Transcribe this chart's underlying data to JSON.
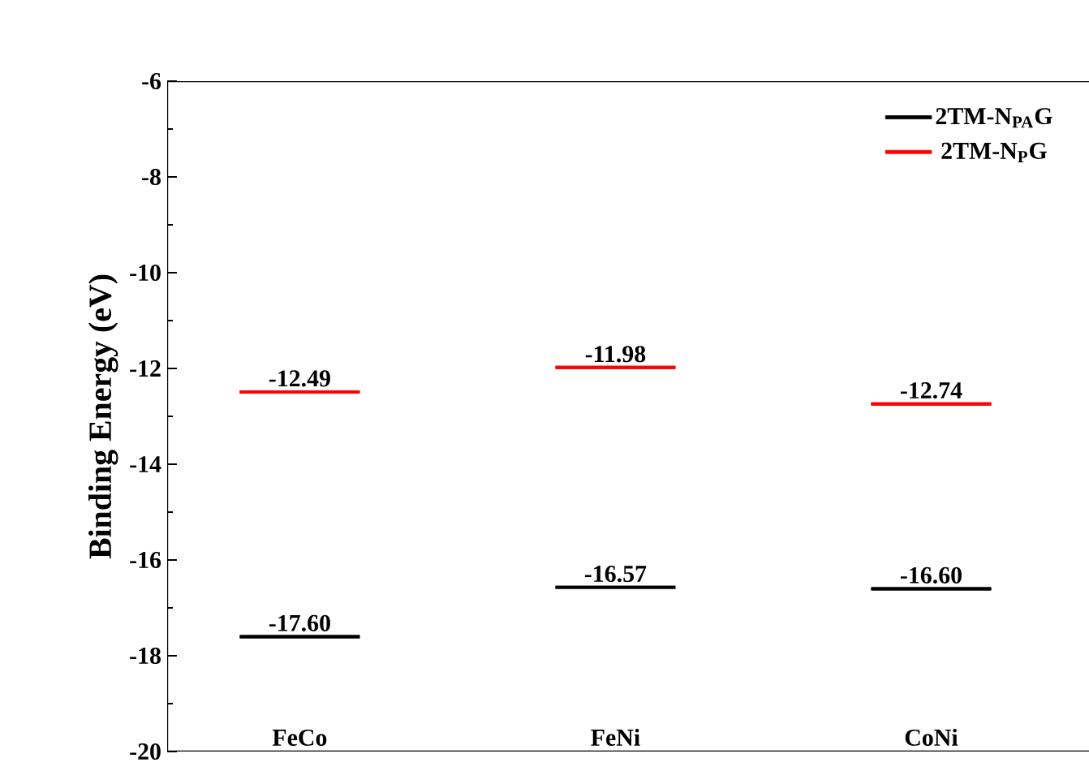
{
  "chart_data": {
    "type": "box",
    "ylabel": "Binding Energy (eV)",
    "categories": [
      "FeCo",
      "FeNi",
      "CoNi"
    ],
    "series": [
      {
        "name": "2TM-N$_{PA}$G",
        "color": "#000000",
        "boxes": [
          {
            "low": -17.6,
            "q1": -17.6,
            "median": -17.6,
            "q3": -17.6,
            "high": -17.6
          },
          {
            "low": -16.57,
            "q1": -16.57,
            "median": -16.57,
            "q3": -16.57,
            "high": -16.57
          },
          {
            "low": -16.6,
            "q1": -16.6,
            "median": -16.6,
            "q3": -16.6,
            "high": -16.6
          }
        ],
        "value_labels": [
          "-17.60",
          "-16.57",
          "-16.60"
        ]
      },
      {
        "name": "2TM-N$_{P}$G",
        "color": "#ff0000",
        "boxes": [
          {
            "low": -12.49,
            "q1": -12.49,
            "median": -12.49,
            "q3": -12.49,
            "high": -12.49
          },
          {
            "low": -11.98,
            "q1": -11.98,
            "median": -11.98,
            "q3": -11.98,
            "high": -11.98
          },
          {
            "low": -12.74,
            "q1": -12.74,
            "median": -12.74,
            "q3": -12.74,
            "high": -12.74
          }
        ],
        "value_labels": [
          "-12.49",
          "-11.98",
          "-12.74"
        ]
      }
    ],
    "ylim": [
      -20,
      -6
    ],
    "yticks": [
      -20,
      -18,
      -16,
      -14,
      -12,
      -10,
      -8,
      -6
    ],
    "legend": "top right"
  }
}
